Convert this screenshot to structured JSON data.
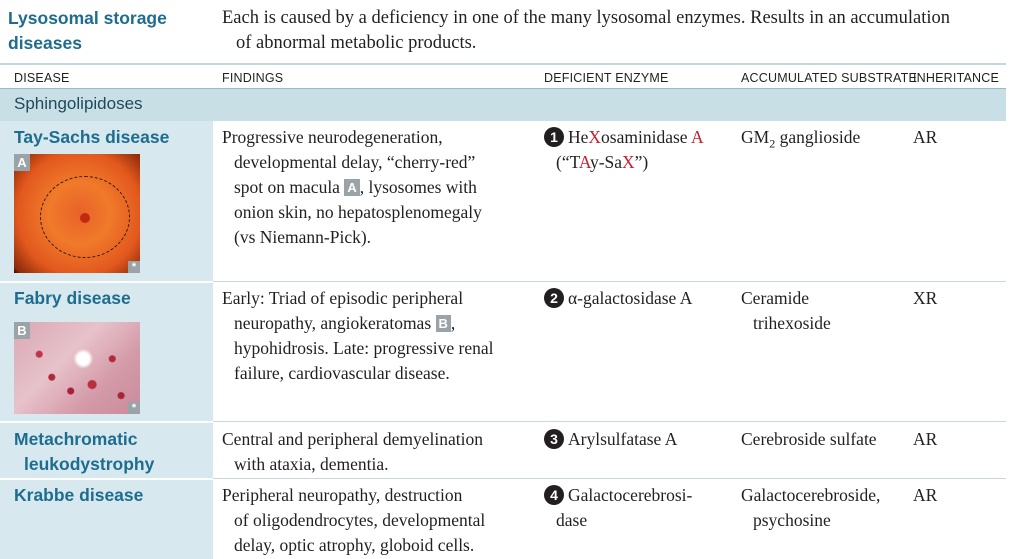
{
  "section": {
    "title_line1": "Lysosomal storage",
    "title_line2": "diseases",
    "desc_line1": "Each is caused by a deficiency in one of the many lysosomal enzymes. Results in an accumulation",
    "desc_line2": "of abnormal metabolic products."
  },
  "columns": {
    "disease": "DISEASE",
    "findings": "FINDINGS",
    "enzyme": "DEFICIENT ENZYME",
    "substrate": "ACCUMULATED SUBSTRATE",
    "inheritance": "INHERITANCE"
  },
  "category": "Sphingolipidoses",
  "rows": [
    {
      "name": "Tay-Sachs disease",
      "image_tag": "A",
      "image_mark": "*",
      "findings": [
        "Progressive neurodegeneration,",
        "developmental delay, “cherry-red”",
        "spot on macula",
        "A",
        ", lysosomes with",
        "onion skin, no hepatosplenomegaly",
        "(vs Niemann-Pick)."
      ],
      "enzyme_num": "1",
      "enzyme_parts": [
        "He",
        "X",
        "osaminidase ",
        "A"
      ],
      "enzyme_line2_parts": [
        "(“T",
        "A",
        "y-Sa",
        "X",
        "”)"
      ],
      "substrate_pre": "GM",
      "substrate_sub": "2",
      "substrate_post": " ganglioside",
      "inheritance": "AR"
    },
    {
      "name": "Fabry disease",
      "image_tag": "B",
      "image_mark": "*",
      "findings": [
        "Early: Triad of episodic peripheral",
        "neuropathy, angiokeratomas",
        "B",
        ",",
        "hypohidrosis. Late: progressive renal",
        "failure, cardiovascular disease."
      ],
      "enzyme_num": "2",
      "enzyme": "α-galactosidase A",
      "substrate_line1": "Ceramide",
      "substrate_line2": "trihexoside",
      "inheritance": "XR"
    },
    {
      "name_line1": "Metachromatic",
      "name_line2": "leukodystrophy",
      "findings": [
        "Central and peripheral demyelination",
        "with ataxia, dementia."
      ],
      "enzyme_num": "3",
      "enzyme": "Arylsulfatase A",
      "substrate": "Cerebroside sulfate",
      "inheritance": "AR"
    },
    {
      "name": "Krabbe disease",
      "findings": [
        "Peripheral neuropathy, destruction",
        "of oligodendrocytes, developmental",
        "delay, optic atrophy, globoid cells."
      ],
      "enzyme_num": "4",
      "enzyme_line1": "Galactocerebrosi-",
      "enzyme_line2": "dase",
      "substrate_line1": "Galactocerebroside,",
      "substrate_line2": "psychosine",
      "inheritance": "AR"
    }
  ],
  "colors": {
    "accent": "#1e6d8f",
    "category_band": "#c9dfe6",
    "left_column": "#d7e8ee",
    "highlight_red": "#c4202e"
  }
}
